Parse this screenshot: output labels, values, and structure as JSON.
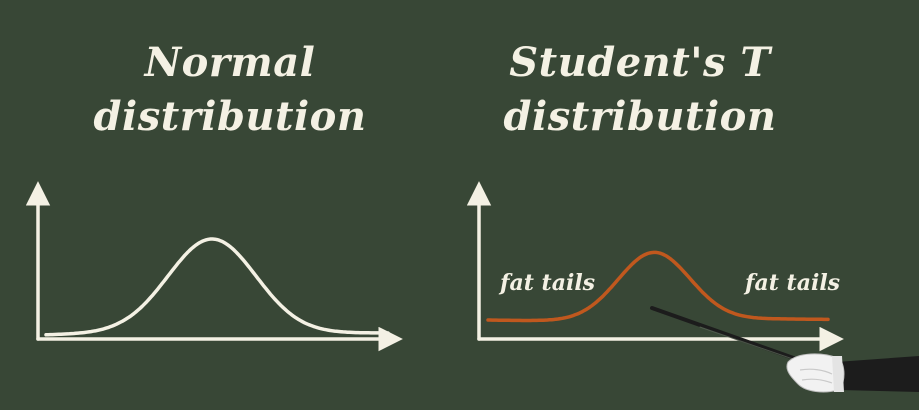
{
  "panels": {
    "left": {
      "title_line1": "Normal",
      "title_line2": "distribution",
      "curve": "normal",
      "curve_color": "#f4f1e4"
    },
    "right": {
      "title_line1": "Student's T",
      "title_line2": "distribution",
      "curve": "student-t",
      "curve_color": "#c0581e",
      "tail_label_left": "fat tails",
      "tail_label_right": "fat tails"
    }
  },
  "colors": {
    "background": "#384736",
    "chalk": "#f4f1e4",
    "pointer": "#1c1c1c",
    "glove": "#f2f2f2"
  },
  "decor": {
    "pointer": "hand-holding-pointer-stick"
  }
}
